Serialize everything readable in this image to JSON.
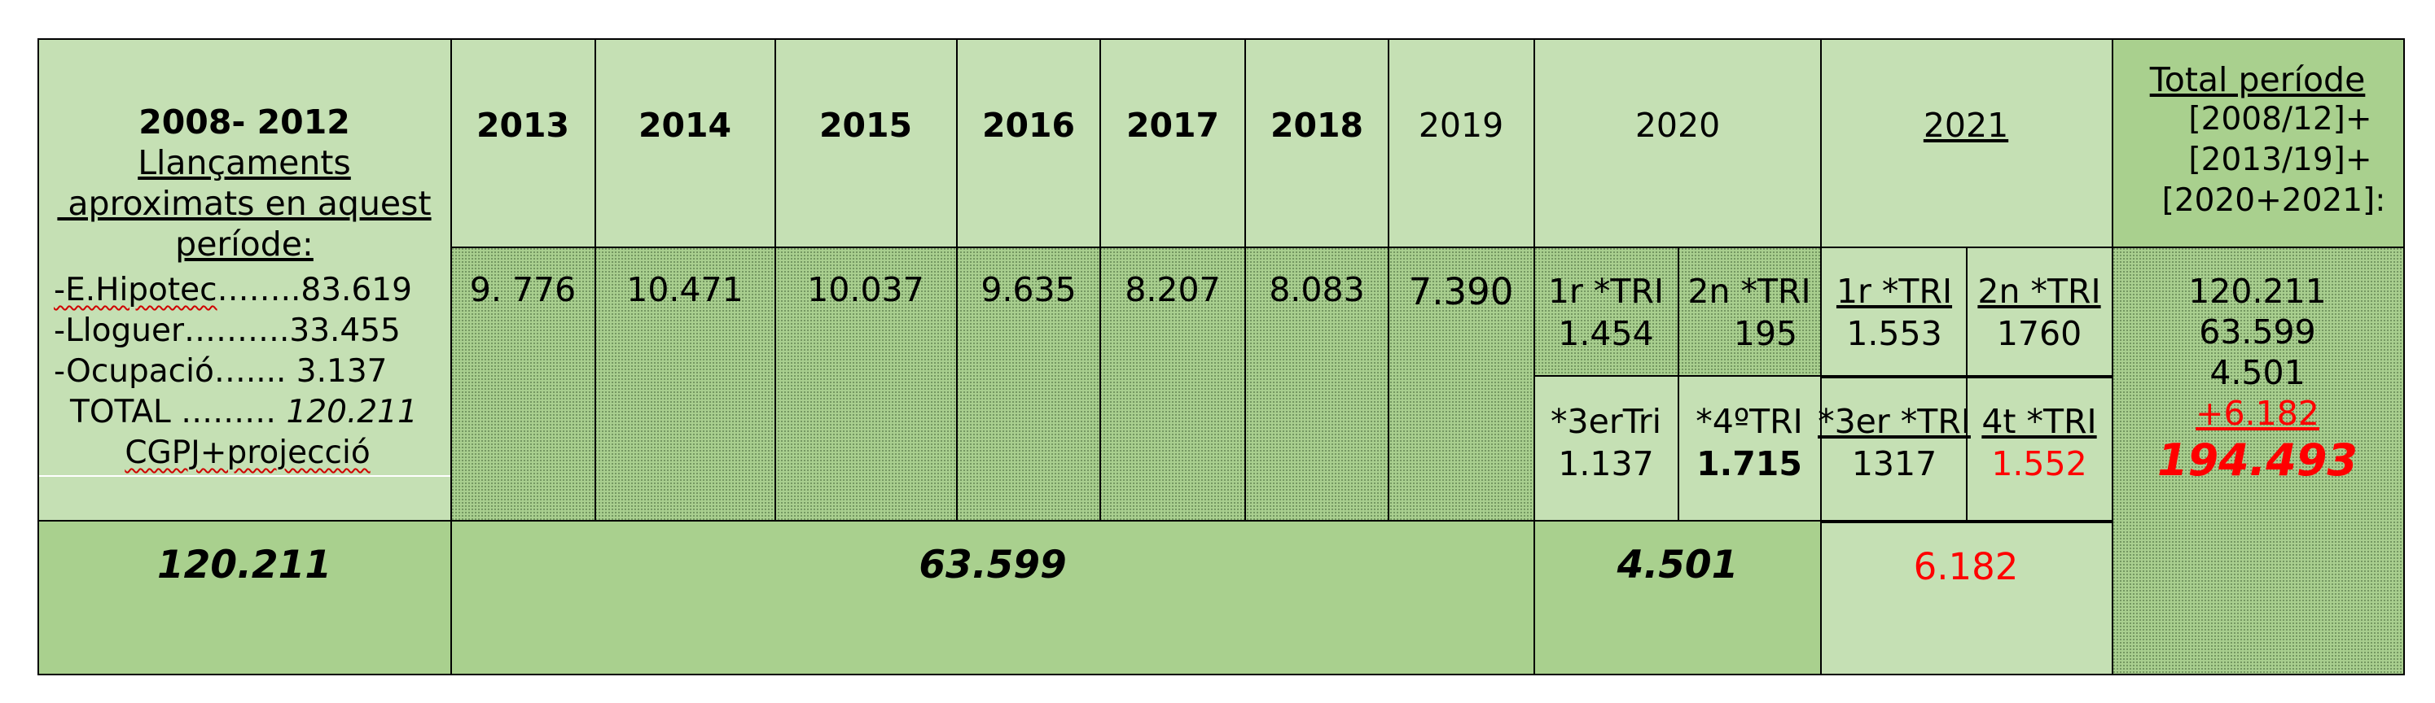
{
  "first_period": {
    "title": "2008-  2012",
    "subtitle_lines": [
      "Llançaments",
      " aproximats en aquest",
      "període:"
    ],
    "items": [
      {
        "label": "-E.Hipotec",
        "dots": "……..",
        "value": "83.619"
      },
      {
        "label": "-Lloguer",
        "dots": "……….",
        "value": "33.455"
      },
      {
        "label": "-Ocupació",
        "dots": "…....",
        "value": " 3.137"
      }
    ],
    "total_label": "TOTAL ……… ",
    "total_value": "120.211",
    "source": "CGPJ+projecció",
    "summary": "120.211"
  },
  "years": [
    {
      "label": "2013",
      "value": "9. 776"
    },
    {
      "label": "2014",
      "value": "10.471"
    },
    {
      "label": "2015",
      "value": "10.037"
    },
    {
      "label": "2016",
      "value": "9.635"
    },
    {
      "label": "2017",
      "value": "8.207"
    },
    {
      "label": "2018",
      "value": "8.083"
    },
    {
      "label": "2019",
      "value": "7.390"
    }
  ],
  "period_2013_2019_total": "63.599",
  "y2020": {
    "label": "2020",
    "q1_label": "1r *TRI",
    "q1_value": "1.454",
    "q2_label": "2n *TRI",
    "q2_value": "195",
    "q3_label": "*3erTri",
    "q3_value": "1.137",
    "q4_label": "*4ºTRI",
    "q4_value": "1.715",
    "total": "4.501"
  },
  "y2021": {
    "label": "2021",
    "q1_label": "1r *TRI",
    "q1_value": "1.553",
    "q2_label": "2n *TRI",
    "q2_value": "1760",
    "q3_label": "*3er *TRI",
    "q3_value": "1317",
    "q4_label": "4t *TRI",
    "q4_value": "1.552",
    "total": "6.182"
  },
  "grand_total": {
    "header_lines": [
      "Total període",
      "[2008/12]+",
      "[2013/19]+",
      "[2020+2021]:"
    ],
    "values": [
      "120.211",
      "63.599",
      "4.501",
      "+6.182"
    ],
    "sum": "194.493"
  },
  "colors": {
    "light_green": "#c5e0b4",
    "mid_green": "#a9d08e",
    "red": "#ff0000"
  }
}
